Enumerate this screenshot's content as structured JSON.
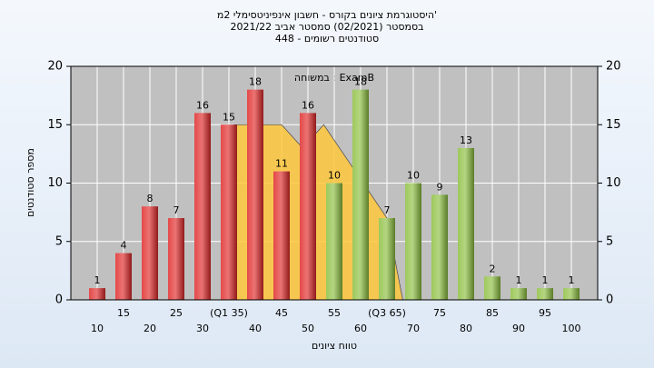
{
  "chart_data": {
    "type": "bar",
    "title": [
      "היסטוגרמת ציונים בקורס - חשבון אינפיניטסימלי 2מ'",
      "בסמסטר  (02/2021)  סמסטר אביב 2021/22",
      "סטודנטים רשומים - 448"
    ],
    "annotation": "במשוחה : ExamB",
    "x_label": "טווח ציונים",
    "y_label": "מספר סטודנטים",
    "x": [
      10,
      15,
      20,
      25,
      30,
      35,
      40,
      45,
      50,
      55,
      60,
      65,
      70,
      75,
      80,
      85,
      90,
      95,
      100
    ],
    "values": [
      1,
      4,
      8,
      7,
      16,
      15,
      18,
      11,
      16,
      10,
      18,
      7,
      10,
      9,
      13,
      2,
      1,
      1,
      1
    ],
    "colors": [
      "#e02828",
      "#e02828",
      "#e02828",
      "#e02828",
      "#e02828",
      "#e02828",
      "#e02828",
      "#e02828",
      "#e02828",
      "#8cbf3f",
      "#8cbf3f",
      "#8cbf3f",
      "#8cbf3f",
      "#8cbf3f",
      "#8cbf3f",
      "#8cbf3f",
      "#8cbf3f",
      "#8cbf3f",
      "#8cbf3f"
    ],
    "band": {
      "x": [
        36,
        36,
        45,
        49,
        53,
        65,
        68
      ],
      "values": [
        0,
        15,
        15,
        13,
        15,
        7,
        0
      ],
      "color": "#ffc83c"
    },
    "xlim": [
      5,
      105
    ],
    "xticks": [
      10,
      15,
      20,
      25,
      30,
      {
        "value": 35,
        "label": "(Q1 35)"
      },
      40,
      45,
      50,
      55,
      60,
      {
        "value": 65,
        "label": "(Q3 65)"
      },
      70,
      75,
      80,
      85,
      90,
      95,
      100
    ],
    "ylim": [
      0,
      20
    ],
    "yticks": [
      0,
      5,
      10,
      15,
      20
    ],
    "y2lim": [
      0,
      20
    ],
    "y2ticks": [
      0,
      5,
      10,
      15,
      20
    ],
    "grid": true
  }
}
